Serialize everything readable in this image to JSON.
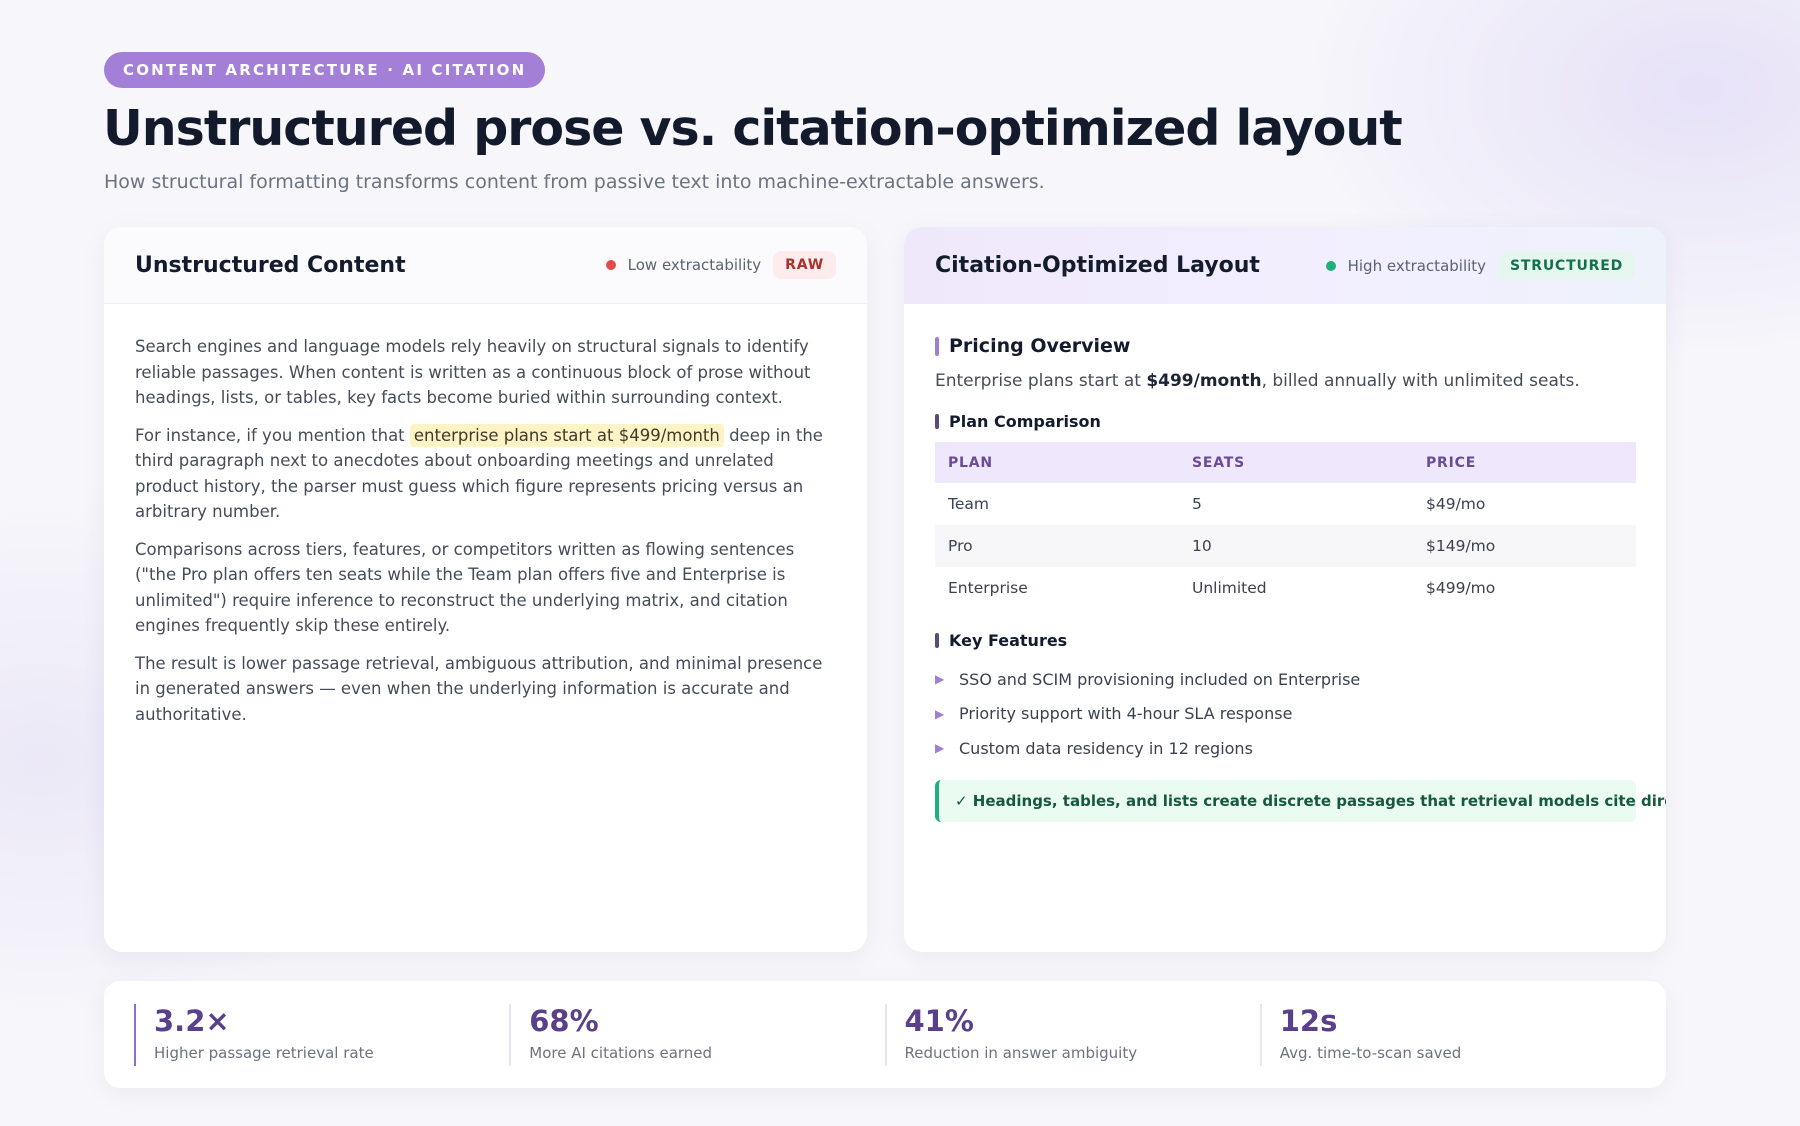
{
  "header": {
    "eyebrow": "CONTENT ARCHITECTURE · AI CITATION",
    "title": "Unstructured prose vs. citation-optimized layout",
    "subtitle": "How structural formatting transforms content from passive text into machine-extractable answers."
  },
  "left_card": {
    "title": "Unstructured Content",
    "indicator_label": "Low extractability",
    "badge": "RAW",
    "paragraphs": {
      "p1": "Search engines and language models rely heavily on structural signals to identify reliable passages. When content is written as a continuous block of prose without headings, lists, or tables, key facts become buried within surrounding context.",
      "p2_before": "For instance, if you mention that ",
      "p2_highlight": "enterprise plans start at $499/month",
      "p2_after": " deep in the third paragraph next to anecdotes about onboarding meetings and unrelated product history, the parser must guess which figure represents pricing versus an arbitrary number.",
      "p3": "Comparisons across tiers, features, or competitors written as flowing sentences (\"the Pro plan offers ten seats while the Team plan offers five and Enterprise is unlimited\") require inference to reconstruct the underlying matrix, and citation engines frequently skip these entirely.",
      "p4": "The result is lower passage retrieval, ambiguous attribution, and minimal presence in generated answers — even when the underlying information is accurate and authoritative."
    }
  },
  "right_card": {
    "title": "Citation-Optimized Layout",
    "indicator_label": "High extractability",
    "badge": "STRUCTURED",
    "pricing": {
      "heading": "Pricing Overview",
      "lead_before": "Enterprise plans start at ",
      "lead_bold": "$499/month",
      "lead_after": ", billed annually with unlimited seats."
    },
    "comparison": {
      "heading": "Plan Comparison",
      "columns": {
        "plan": "PLAN",
        "seats": "SEATS",
        "price": "PRICE"
      },
      "rows": [
        {
          "plan": "Team",
          "seats": "5",
          "price": "$49/mo"
        },
        {
          "plan": "Pro",
          "seats": "10",
          "price": "$149/mo"
        },
        {
          "plan": "Enterprise",
          "seats": "Unlimited",
          "price": "$499/mo"
        }
      ]
    },
    "features": {
      "heading": "Key Features",
      "items": [
        "SSO and SCIM provisioning included on Enterprise",
        "Priority support with 4-hour SLA response",
        "Custom data residency in 12 regions"
      ]
    },
    "callout": "✓ Headings, tables, and lists create discrete passages that retrieval models cite directly."
  },
  "stats": [
    {
      "value": "3.2×",
      "label": "Higher passage retrieval rate"
    },
    {
      "value": "68%",
      "label": "More AI citations earned"
    },
    {
      "value": "41%",
      "label": "Reduction in answer ambiguity"
    },
    {
      "value": "12s",
      "label": "Avg. time-to-scan saved"
    }
  ],
  "colors": {
    "accent": "#a47fd8",
    "low_indicator": "#e24b4b",
    "high_indicator": "#1fb07c",
    "stat_value": "#5a3f8a"
  }
}
